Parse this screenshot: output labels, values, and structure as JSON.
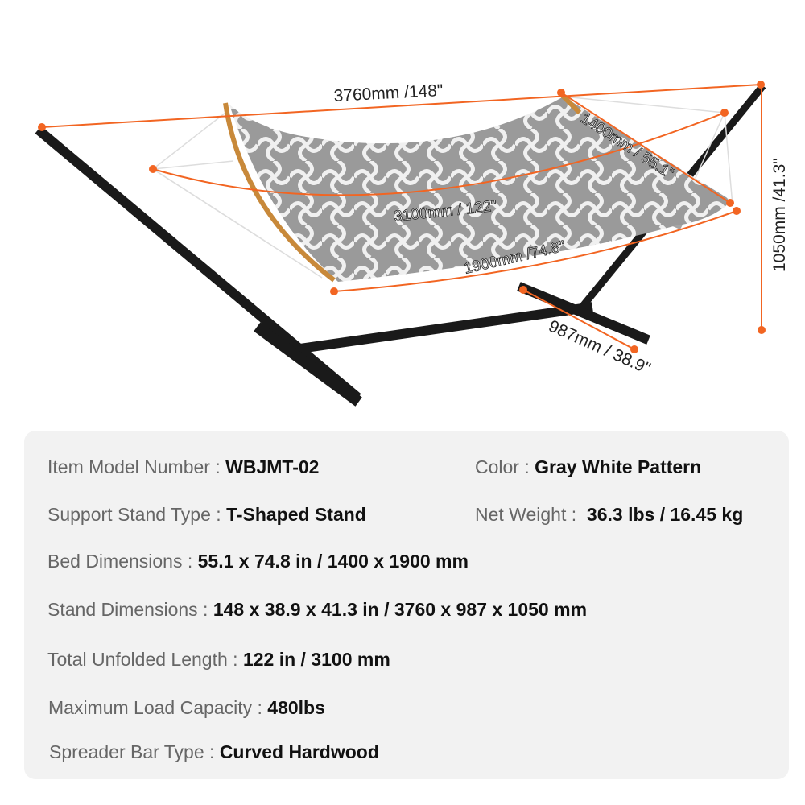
{
  "illustration": {
    "accent_color": "#f26522",
    "dimensions": {
      "stand_length": "3760mm /148\"",
      "bed_width": "1400mm / 55.1\"",
      "total_length": "3100mm / 122\"",
      "bed_length": "1900mm /74.8\"",
      "stand_height": "1050mm /41.3\"",
      "stand_width": "987mm / 38.9\""
    }
  },
  "specs": [
    {
      "label": "Item Model Number : ",
      "value": "WBJMT-02"
    },
    {
      "label": "Color : ",
      "value": "Gray White Pattern"
    },
    {
      "label": "Support Stand Type : ",
      "value": "T-Shaped Stand"
    },
    {
      "label": "Net Weight :  ",
      "value": "36.3 lbs / 16.45 kg"
    },
    {
      "label": "Bed Dimensions : ",
      "value": "55.1 x 74.8 in / 1400 x 1900 mm"
    },
    {
      "label": "Stand Dimensions : ",
      "value": "148 x 38.9 x 41.3 in / 3760 x 987 x 1050 mm"
    },
    {
      "label": "Total Unfolded Length : ",
      "value": "122 in / 3100 mm"
    },
    {
      "label": "Maximum Load Capacity : ",
      "value": "480lbs"
    },
    {
      "label": "Spreader Bar Type : ",
      "value": "Curved Hardwood"
    }
  ]
}
